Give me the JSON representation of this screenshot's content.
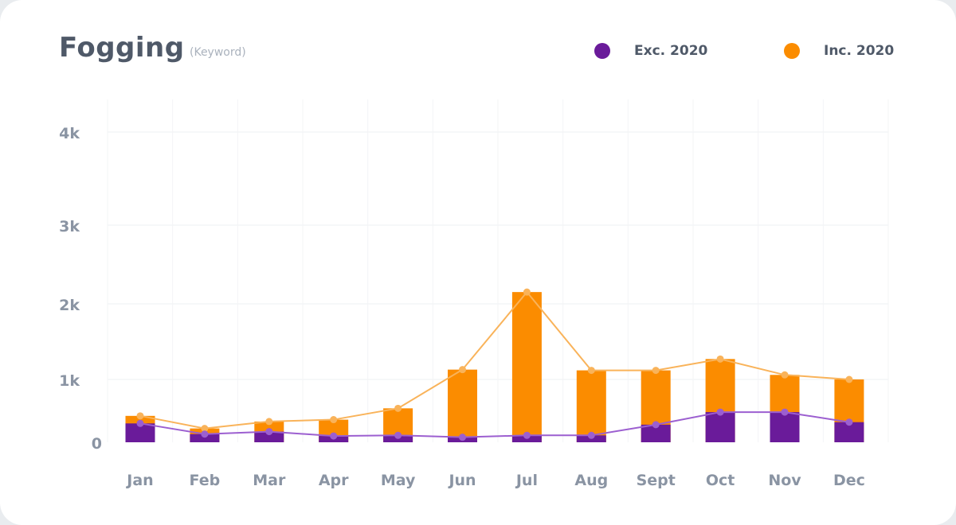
{
  "header": {
    "title": "Fogging",
    "subtitle": "(Keyword)"
  },
  "legend": [
    {
      "label": "Exc. 2020",
      "color": "#6a1b9a"
    },
    {
      "label": "Inc. 2020",
      "color": "#fb8c00"
    }
  ],
  "chart_data": {
    "type": "bar",
    "categories": [
      "Jan",
      "Feb",
      "Mar",
      "Apr",
      "May",
      "Jun",
      "Jul",
      "Aug",
      "Sept",
      "Oct",
      "Nov",
      "Dec"
    ],
    "series": [
      {
        "name": "Exc. 2020",
        "values": [
          300,
          130,
          170,
          100,
          110,
          80,
          110,
          110,
          280,
          480,
          480,
          320
        ],
        "color": "#6a1b9a",
        "line_color": "#9c5fd0"
      },
      {
        "name": "Inc. 2020",
        "values": [
          420,
          220,
          330,
          360,
          540,
          1130,
          2150,
          1120,
          1120,
          1270,
          1060,
          1000
        ],
        "color": "#fb8c00",
        "line_color": "#f9b35a"
      }
    ],
    "y_ticks": [
      {
        "value": 0,
        "label": "0"
      },
      {
        "value": 1000,
        "label": "1k"
      },
      {
        "value": 2000,
        "label": "2k"
      },
      {
        "value": 3000,
        "label": "3k"
      },
      {
        "value": 4000,
        "label": "4k"
      }
    ],
    "ylim": [
      0,
      4000
    ],
    "grid": true,
    "legend_position": "top-right"
  }
}
